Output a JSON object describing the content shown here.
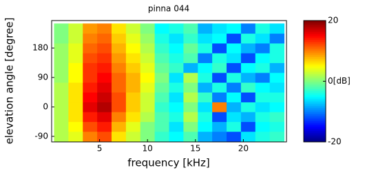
{
  "chart_data": {
    "type": "heatmap",
    "title": "pinna 044",
    "xlabel": "frequency [kHz]",
    "ylabel": "elevation angle [degree]",
    "x": [
      1,
      2.5,
      4,
      5.5,
      7,
      8.5,
      10,
      11.5,
      13,
      14.5,
      16,
      17.5,
      19,
      20.5,
      22,
      23.5
    ],
    "y": [
      -90,
      -60,
      -30,
      0,
      30,
      60,
      90,
      120,
      150,
      180,
      210,
      240
    ],
    "z": [
      [
        2,
        4,
        10,
        12,
        6,
        3,
        0,
        -3,
        -5,
        -2,
        -8,
        -10,
        -12,
        -6,
        -4,
        -3
      ],
      [
        2,
        5,
        12,
        14,
        8,
        4,
        0,
        -2,
        -6,
        0,
        -5,
        -8,
        -4,
        -12,
        -5,
        -4
      ],
      [
        2,
        6,
        14,
        16,
        10,
        6,
        2,
        -2,
        -4,
        2,
        -4,
        -12,
        -6,
        -8,
        -4,
        -3
      ],
      [
        2,
        6,
        16,
        18,
        12,
        7,
        3,
        -3,
        -5,
        0,
        -6,
        10,
        -8,
        -4,
        -6,
        -5
      ],
      [
        2,
        6,
        15,
        17,
        12,
        7,
        3,
        -2,
        -6,
        2,
        -3,
        -10,
        -5,
        -12,
        -4,
        -4
      ],
      [
        2,
        6,
        14,
        16,
        11,
        8,
        4,
        -1,
        -4,
        0,
        -8,
        -4,
        -10,
        -3,
        -5,
        -6
      ],
      [
        1,
        5,
        13,
        15,
        11,
        8,
        5,
        0,
        -6,
        2,
        -4,
        -12,
        -4,
        -8,
        -10,
        -5
      ],
      [
        1,
        5,
        13,
        14,
        10,
        7,
        4,
        -1,
        -3,
        -8,
        -5,
        -3,
        -12,
        -5,
        -4,
        -8
      ],
      [
        1,
        4,
        12,
        13,
        9,
        6,
        3,
        -2,
        -4,
        -2,
        -10,
        -4,
        -6,
        -12,
        -5,
        -4
      ],
      [
        1,
        4,
        11,
        12,
        8,
        5,
        2,
        -3,
        -5,
        -1,
        -4,
        -12,
        -5,
        -8,
        -10,
        -4
      ],
      [
        0,
        3,
        10,
        11,
        7,
        4,
        1,
        -4,
        -6,
        -3,
        -6,
        -5,
        -12,
        -4,
        -6,
        -10
      ],
      [
        0,
        3,
        9,
        10,
        6,
        3,
        0,
        -5,
        -4,
        -2,
        -8,
        -6,
        -5,
        -10,
        -4,
        -6
      ]
    ],
    "xlim": [
      0,
      24.5
    ],
    "ylim": [
      -107,
      264
    ],
    "xticks": [
      5,
      10,
      15,
      20
    ],
    "yticks": [
      -90,
      0,
      90,
      180
    ],
    "clim": [
      -20,
      20
    ],
    "cticks": [
      -20,
      {
        "value": 0,
        "label": "0[dB]"
      },
      20
    ],
    "colormap": "jet"
  }
}
